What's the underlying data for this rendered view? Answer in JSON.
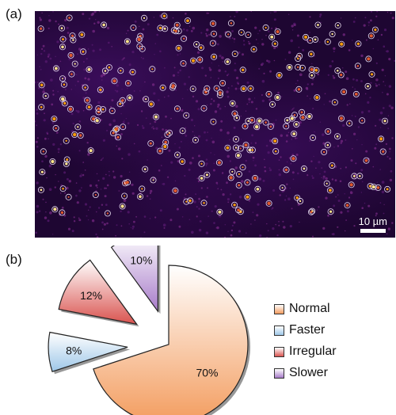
{
  "panels": {
    "a_label": "(a)",
    "b_label": "(b)"
  },
  "micrograph": {
    "scalebar_label": "10 µm"
  },
  "colors": {
    "normal": "#f39c5e",
    "faster": "#9ec7e8",
    "irregular": "#d9534f",
    "slower": "#a77bc9"
  },
  "chart_data": {
    "type": "pie",
    "exploded": true,
    "slices": [
      {
        "name": "Normal",
        "value": 70,
        "label": "70%",
        "color": "#f39c5e"
      },
      {
        "name": "Faster",
        "value": 8,
        "label": "8%",
        "color": "#9ec7e8"
      },
      {
        "name": "Irregular",
        "value": 12,
        "label": "12%",
        "color": "#d9534f"
      },
      {
        "name": "Slower",
        "value": 10,
        "label": "10%",
        "color": "#a77bc9"
      }
    ],
    "legend": {
      "placement": "right",
      "entries": [
        "Normal",
        "Faster",
        "Irregular",
        "Slower"
      ]
    }
  }
}
